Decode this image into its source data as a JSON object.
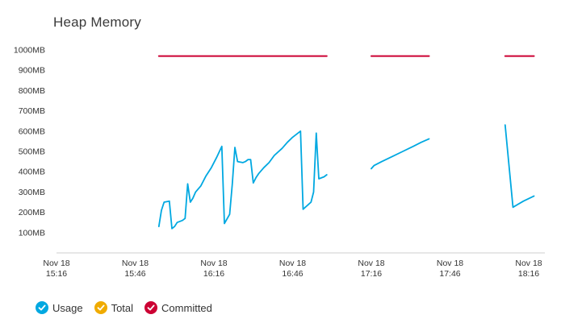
{
  "chart_data": {
    "type": "line",
    "title": "Heap Memory",
    "xlabel": "",
    "ylabel": "",
    "ylim": [
      0,
      1000
    ],
    "y_unit": "MB",
    "y_ticks": [
      100,
      200,
      300,
      400,
      500,
      600,
      700,
      800,
      900,
      1000
    ],
    "y_tick_labels": [
      "100MB",
      "200MB",
      "300MB",
      "400MB",
      "500MB",
      "600MB",
      "700MB",
      "800MB",
      "900MB",
      "1000MB"
    ],
    "x_ticks": [
      {
        "t": "15:16",
        "line1": "Nov 18",
        "line2": "15:16"
      },
      {
        "t": "15:46",
        "line1": "Nov 18",
        "line2": "15:46"
      },
      {
        "t": "16:16",
        "line1": "Nov 18",
        "line2": "16:16"
      },
      {
        "t": "16:46",
        "line1": "Nov 18",
        "line2": "16:46"
      },
      {
        "t": "17:16",
        "line1": "Nov 18",
        "line2": "17:16"
      },
      {
        "t": "17:46",
        "line1": "Nov 18",
        "line2": "17:46"
      },
      {
        "t": "18:16",
        "line1": "Nov 18",
        "line2": "18:16"
      }
    ],
    "grid": false,
    "legend_position": "bottom-left",
    "series": [
      {
        "name": "Usage",
        "color": "#00a8e1",
        "segments": [
          [
            [
              "15:55",
              130
            ],
            [
              "15:56",
              210
            ],
            [
              "15:57",
              250
            ],
            [
              "15:59",
              255
            ],
            [
              "16:00",
              120
            ],
            [
              "16:01",
              130
            ],
            [
              "16:02",
              150
            ],
            [
              "16:04",
              160
            ],
            [
              "16:05",
              170
            ],
            [
              "16:06",
              340
            ],
            [
              "16:07",
              250
            ],
            [
              "16:08",
              270
            ],
            [
              "16:09",
              300
            ],
            [
              "16:11",
              330
            ],
            [
              "16:13",
              380
            ],
            [
              "16:15",
              420
            ],
            [
              "16:17",
              470
            ],
            [
              "16:19",
              525
            ],
            [
              "16:20",
              145
            ],
            [
              "16:22",
              190
            ],
            [
              "16:23",
              340
            ],
            [
              "16:24",
              520
            ],
            [
              "16:25",
              450
            ],
            [
              "16:27",
              445
            ],
            [
              "16:28",
              450
            ],
            [
              "16:29",
              460
            ],
            [
              "16:30",
              460
            ],
            [
              "16:31",
              345
            ],
            [
              "16:32",
              370
            ],
            [
              "16:33",
              390
            ],
            [
              "16:35",
              420
            ],
            [
              "16:37",
              445
            ],
            [
              "16:39",
              480
            ],
            [
              "16:42",
              515
            ],
            [
              "16:44",
              545
            ],
            [
              "16:46",
              570
            ],
            [
              "16:49",
              600
            ],
            [
              "16:50",
              215
            ],
            [
              "16:53",
              250
            ],
            [
              "16:54",
              300
            ],
            [
              "16:55",
              590
            ],
            [
              "16:56",
              365
            ],
            [
              "16:58",
              375
            ],
            [
              "16:59",
              385
            ]
          ],
          [
            [
              "17:16",
              415
            ],
            [
              "17:17",
              430
            ],
            [
              "17:20",
              450
            ],
            [
              "17:24",
              475
            ],
            [
              "17:28",
              500
            ],
            [
              "17:32",
              525
            ],
            [
              "17:35",
              545
            ],
            [
              "17:38",
              562
            ]
          ],
          [
            [
              "18:07",
              630
            ],
            [
              "18:10",
              225
            ],
            [
              "18:14",
              255
            ],
            [
              "18:18",
              280
            ]
          ]
        ]
      },
      {
        "name": "Total",
        "color": "#f0ab00",
        "segments": []
      },
      {
        "name": "Committed",
        "color": "#cc0033",
        "segments": [
          [
            [
              "15:55",
              970
            ],
            [
              "16:59",
              970
            ]
          ],
          [
            [
              "17:16",
              970
            ],
            [
              "17:38",
              970
            ]
          ],
          [
            [
              "18:07",
              970
            ],
            [
              "18:18",
              970
            ]
          ]
        ]
      }
    ]
  },
  "legend": {
    "items": [
      {
        "label": "Usage",
        "color": "#00a8e1"
      },
      {
        "label": "Total",
        "color": "#f0ab00"
      },
      {
        "label": "Committed",
        "color": "#cc0033"
      }
    ]
  }
}
